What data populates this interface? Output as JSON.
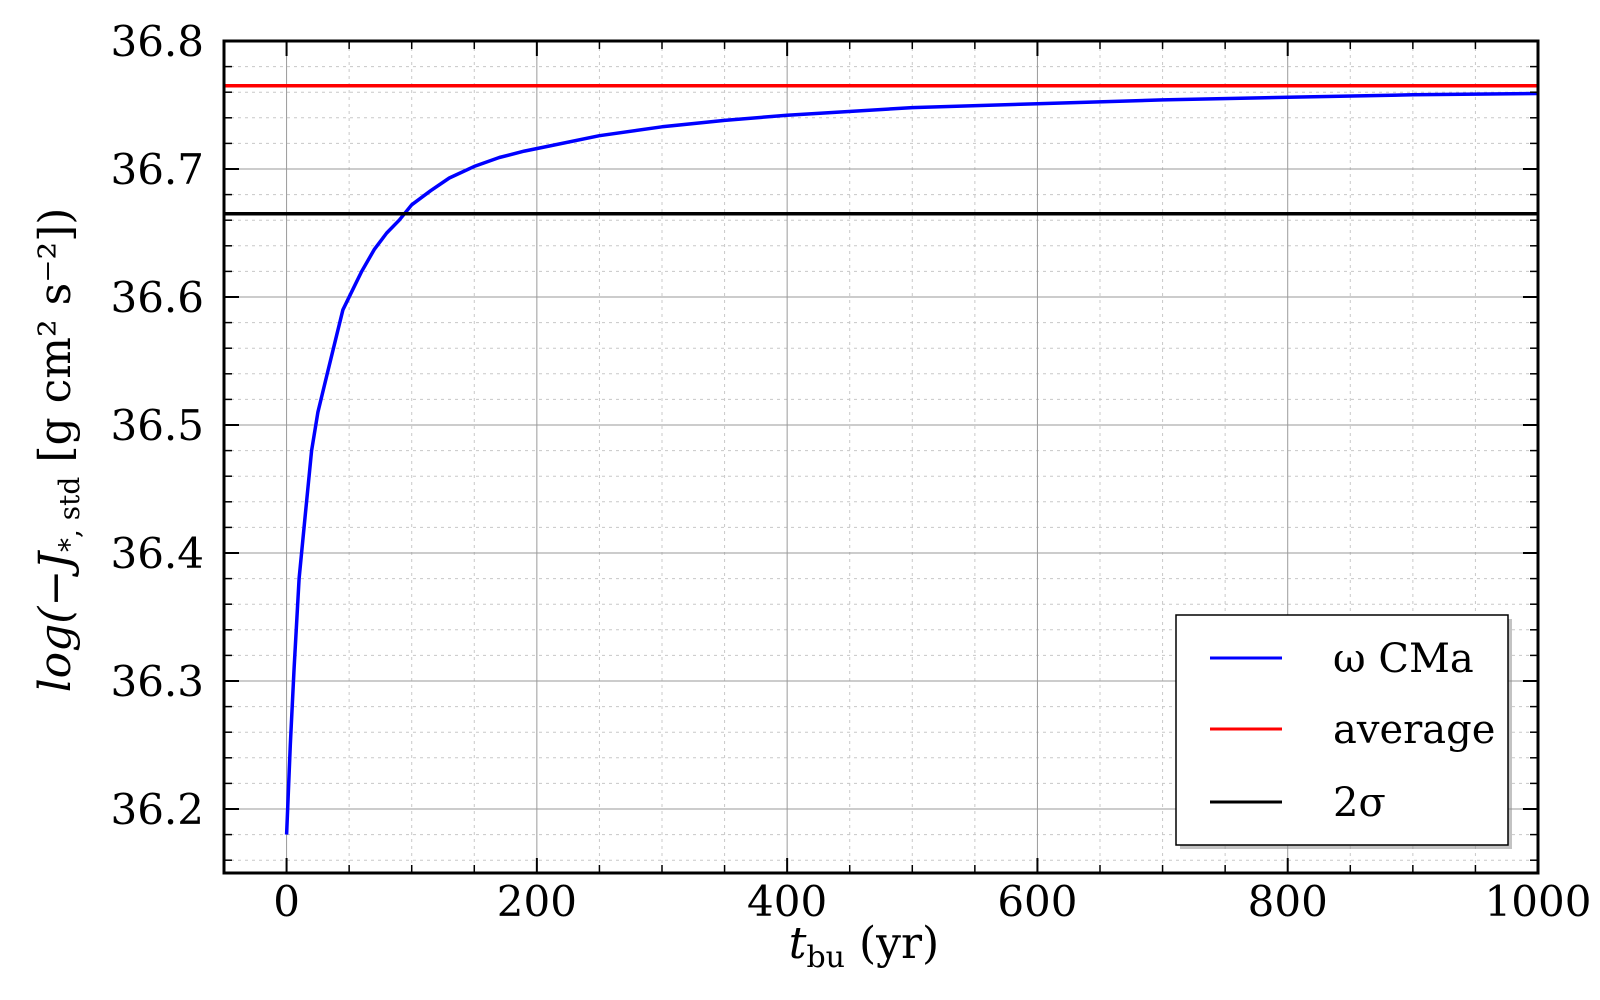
{
  "chart_data": {
    "type": "line",
    "xlabel": {
      "main": "t",
      "sub": "bu",
      "unit": " (yr)"
    },
    "ylabel": {
      "prefix": "log(−",
      "symbol": "J",
      "sub": "*, std",
      "unit": " [g cm² s⁻²])"
    },
    "xlim": [
      -50,
      1000
    ],
    "ylim": [
      36.15,
      36.8
    ],
    "x_ticks": [
      0,
      200,
      400,
      600,
      800,
      1000
    ],
    "x_tick_labels": [
      "0",
      "200",
      "400",
      "600",
      "800",
      "1000"
    ],
    "y_ticks": [
      36.2,
      36.3,
      36.4,
      36.5,
      36.6,
      36.7,
      36.8
    ],
    "y_tick_labels": [
      "36.2",
      "36.3",
      "36.4",
      "36.5",
      "36.6",
      "36.7",
      "36.8"
    ],
    "grid": true,
    "legend_position": "bottom-right",
    "series": [
      {
        "name": "ω CMa",
        "color": "#0000ff",
        "x": [
          0,
          3,
          6,
          10,
          15,
          20,
          25,
          30,
          40,
          45,
          55,
          60,
          70,
          80,
          90,
          100,
          115,
          130,
          150,
          170,
          190,
          210,
          250,
          300,
          350,
          400,
          500,
          600,
          700,
          800,
          900,
          1000
        ],
        "y": [
          36.18,
          36.25,
          36.31,
          36.38,
          36.43,
          36.48,
          36.51,
          36.53,
          36.57,
          36.59,
          36.61,
          36.62,
          36.637,
          36.65,
          36.66,
          36.672,
          36.683,
          36.693,
          36.702,
          36.709,
          36.714,
          36.718,
          36.726,
          36.733,
          36.738,
          36.742,
          36.748,
          36.751,
          36.754,
          36.756,
          36.758,
          36.759
        ]
      },
      {
        "name": "average",
        "color": "#ff0000",
        "x": [
          -50,
          1000
        ],
        "y": [
          36.765,
          36.765
        ]
      },
      {
        "name": "2σ",
        "color": "#000000",
        "x": [
          -50,
          1000
        ],
        "y": [
          36.665,
          36.665
        ]
      }
    ]
  }
}
